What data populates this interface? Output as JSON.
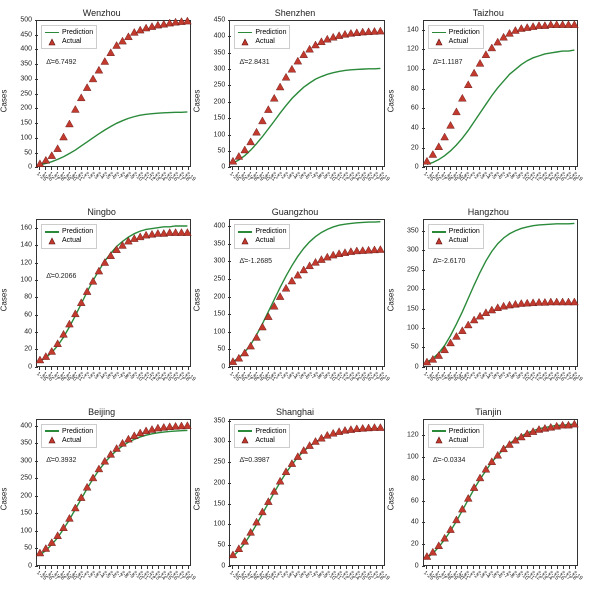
{
  "background_color": "#ffffff",
  "line_color": "#2a8a3a",
  "marker_fill": "#c23a2e",
  "marker_edge": "#5a0f0f",
  "marker_shape": "triangle",
  "marker_size": 3.2,
  "line_width": 1.4,
  "border_color": "#333333",
  "text_color": "#222222",
  "title_fontsize": 9,
  "label_fontsize": 8,
  "tick_fontsize": 7,
  "xtick_fontsize": 5.5,
  "legend_fontsize": 7,
  "xtick_rotation": 40,
  "ylabel": "Cases",
  "legend": {
    "prediction": "Prediction",
    "actual": "Actual"
  },
  "stat_prefix": "Δ̄=",
  "dates": [
    "1-25",
    "1-26",
    "1-27",
    "1-28",
    "1-29",
    "1-30",
    "1-31",
    "2-1",
    "2-2",
    "2-3",
    "2-4",
    "2-5",
    "2-6",
    "2-7",
    "2-8",
    "2-9",
    "2-10",
    "2-11",
    "2-12",
    "2-13",
    "2-14",
    "2-15",
    "2-16",
    "2-17",
    "2-18",
    "2-19"
  ],
  "panels": [
    {
      "title": "Wenzhou",
      "stat": "6.7492",
      "ylim": [
        0,
        500
      ],
      "ytick_step": 50,
      "stat_pos": [
        0.06,
        0.26
      ],
      "actual": [
        8,
        20,
        36,
        60,
        100,
        145,
        195,
        235,
        270,
        300,
        330,
        360,
        390,
        415,
        430,
        445,
        460,
        468,
        475,
        480,
        485,
        488,
        492,
        495,
        497,
        499
      ],
      "prediction": [
        5,
        10,
        16,
        24,
        33,
        44,
        56,
        70,
        84,
        98,
        112,
        125,
        137,
        148,
        157,
        165,
        171,
        176,
        179,
        181,
        183,
        184,
        185,
        186,
        186,
        187
      ]
    },
    {
      "title": "Shenzhen",
      "stat": "2.8431",
      "ylim": [
        0,
        450
      ],
      "ytick_step": 50,
      "stat_pos": [
        0.06,
        0.26
      ],
      "actual": [
        15,
        30,
        50,
        75,
        105,
        140,
        175,
        210,
        245,
        275,
        300,
        325,
        345,
        362,
        375,
        385,
        393,
        399,
        404,
        408,
        411,
        413,
        415,
        416,
        417,
        418
      ],
      "prediction": [
        10,
        20,
        33,
        50,
        70,
        92,
        116,
        140,
        165,
        188,
        210,
        228,
        245,
        258,
        270,
        278,
        285,
        290,
        294,
        297,
        299,
        300,
        301,
        302,
        302,
        303
      ]
    },
    {
      "title": "Taizhou",
      "stat": "1.1187",
      "ylim": [
        0,
        150
      ],
      "ytick_step": 20,
      "stat_pos": [
        0.06,
        0.26
      ],
      "actual": [
        5,
        12,
        20,
        30,
        42,
        56,
        70,
        84,
        96,
        106,
        115,
        122,
        128,
        133,
        137,
        140,
        142,
        143,
        144,
        145,
        145,
        146,
        146,
        146,
        146,
        146
      ],
      "prediction": [
        2,
        4,
        7,
        11,
        16,
        22,
        29,
        37,
        46,
        55,
        64,
        73,
        81,
        88,
        95,
        100,
        105,
        109,
        112,
        114,
        116,
        117,
        118,
        119,
        119,
        120
      ]
    },
    {
      "title": "Ningbo",
      "stat": "0.2066",
      "ylim": [
        0,
        170
      ],
      "ytick_step": 20,
      "stat_pos": [
        0.06,
        0.36
      ],
      "actual": [
        6,
        10,
        16,
        25,
        36,
        48,
        60,
        73,
        86,
        98,
        110,
        120,
        128,
        135,
        140,
        145,
        148,
        150,
        152,
        153,
        154,
        154,
        155,
        155,
        155,
        155
      ],
      "prediction": [
        5,
        9,
        15,
        23,
        33,
        45,
        58,
        72,
        86,
        99,
        111,
        122,
        131,
        139,
        145,
        150,
        154,
        157,
        159,
        160,
        161,
        162,
        162,
        163,
        163,
        163
      ]
    },
    {
      "title": "Guangzhou",
      "stat": "-1.2685",
      "ylim": [
        0,
        420
      ],
      "ytick_step": 50,
      "stat_pos": [
        0.06,
        0.26
      ],
      "actual": [
        10,
        20,
        35,
        55,
        80,
        110,
        140,
        170,
        198,
        222,
        243,
        260,
        275,
        287,
        297,
        305,
        312,
        318,
        322,
        325,
        328,
        330,
        331,
        332,
        333,
        334
      ],
      "prediction": [
        10,
        22,
        38,
        60,
        88,
        120,
        155,
        190,
        225,
        258,
        288,
        315,
        338,
        357,
        372,
        384,
        393,
        400,
        405,
        408,
        410,
        412,
        413,
        414,
        414,
        415
      ]
    },
    {
      "title": "Hangzhou",
      "stat": "-2.6170",
      "ylim": [
        0,
        380
      ],
      "ytick_step": 50,
      "stat_pos": [
        0.06,
        0.26
      ],
      "actual": [
        8,
        15,
        25,
        40,
        58,
        75,
        90,
        105,
        118,
        128,
        137,
        144,
        150,
        154,
        157,
        159,
        161,
        162,
        163,
        164,
        164,
        165,
        165,
        165,
        165,
        165
      ],
      "prediction": [
        8,
        18,
        32,
        52,
        78,
        108,
        140,
        175,
        210,
        243,
        273,
        298,
        318,
        333,
        344,
        352,
        358,
        362,
        365,
        367,
        368,
        369,
        370,
        370,
        370,
        371
      ]
    },
    {
      "title": "Beijing",
      "stat": "0.3932",
      "ylim": [
        0,
        420
      ],
      "ytick_step": 50,
      "stat_pos": [
        0.06,
        0.26
      ],
      "actual": [
        35,
        48,
        65,
        85,
        108,
        135,
        165,
        195,
        225,
        252,
        278,
        300,
        320,
        337,
        352,
        364,
        374,
        382,
        388,
        392,
        396,
        398,
        400,
        401,
        402,
        403
      ],
      "prediction": [
        30,
        43,
        60,
        80,
        105,
        132,
        162,
        192,
        222,
        250,
        275,
        297,
        316,
        332,
        345,
        356,
        364,
        371,
        376,
        380,
        383,
        385,
        387,
        388,
        389,
        390
      ]
    },
    {
      "title": "Shanghai",
      "stat": "0.3987",
      "ylim": [
        0,
        355
      ],
      "ytick_step": 50,
      "stat_pos": [
        0.06,
        0.26
      ],
      "actual": [
        25,
        40,
        58,
        80,
        105,
        130,
        155,
        180,
        205,
        228,
        248,
        265,
        280,
        292,
        302,
        310,
        317,
        322,
        326,
        329,
        331,
        333,
        334,
        335,
        336,
        336
      ],
      "prediction": [
        22,
        36,
        54,
        76,
        100,
        126,
        152,
        178,
        203,
        226,
        246,
        264,
        279,
        291,
        301,
        309,
        315,
        320,
        324,
        327,
        329,
        331,
        332,
        333,
        334,
        334
      ]
    },
    {
      "title": "Tianjin",
      "stat": "-0.0334",
      "ylim": [
        0,
        135
      ],
      "ytick_step": 20,
      "stat_pos": [
        0.06,
        0.26
      ],
      "actual": [
        8,
        12,
        18,
        25,
        33,
        42,
        52,
        62,
        72,
        81,
        89,
        96,
        102,
        108,
        112,
        116,
        119,
        122,
        124,
        126,
        127,
        128,
        129,
        130,
        130,
        131
      ],
      "prediction": [
        7,
        11,
        17,
        24,
        32,
        41,
        51,
        61,
        71,
        80,
        88,
        96,
        102,
        108,
        113,
        117,
        120,
        123,
        125,
        127,
        128,
        129,
        130,
        130,
        131,
        131
      ]
    }
  ]
}
